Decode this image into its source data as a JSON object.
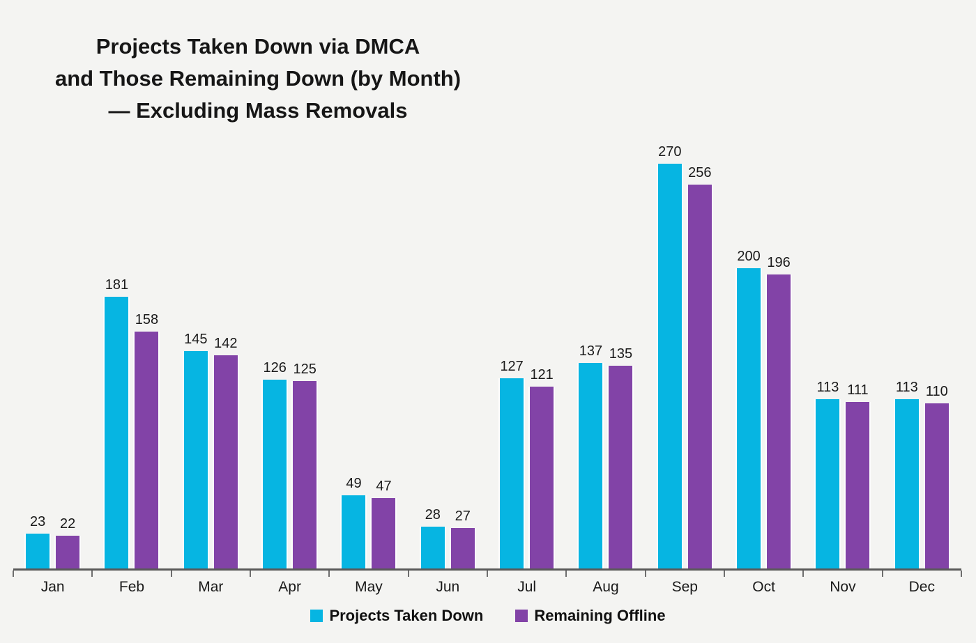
{
  "page": {
    "background_color": "#f4f4f2",
    "text_color": "#1a1a1a",
    "axis_color": "#595959"
  },
  "chart_data": {
    "type": "bar",
    "title": "Projects Taken Down via DMCA and Those Remaining Down (by Month) — Excluding Mass Removals",
    "title_lines": [
      "Projects Taken Down via DMCA",
      "and Those Remaining Down (by Month)",
      "— Excluding Mass Removals"
    ],
    "categories": [
      "Jan",
      "Feb",
      "Mar",
      "Apr",
      "May",
      "Jun",
      "Jul",
      "Aug",
      "Sep",
      "Oct",
      "Nov",
      "Dec"
    ],
    "series": [
      {
        "name": "Projects Taken Down",
        "color": "#06b5e2",
        "values": [
          23,
          181,
          145,
          126,
          49,
          28,
          127,
          137,
          270,
          200,
          113,
          113
        ]
      },
      {
        "name": "Remaining Offline",
        "color": "#8243a7",
        "values": [
          22,
          158,
          142,
          125,
          47,
          27,
          121,
          135,
          256,
          196,
          111,
          110
        ]
      }
    ],
    "ylim": [
      0,
      286
    ],
    "xlabel": "",
    "ylabel": "",
    "grid": false,
    "y_axis_shown": false,
    "value_labels_shown": true,
    "legend_position": "bottom"
  }
}
